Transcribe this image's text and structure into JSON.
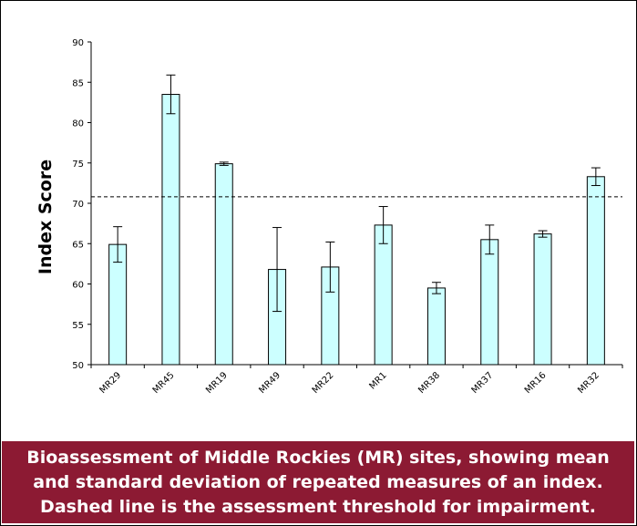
{
  "chart_data": {
    "type": "bar",
    "ylabel": "Index Score",
    "ylim": [
      50,
      90
    ],
    "yticks": [
      50,
      55,
      60,
      65,
      70,
      75,
      80,
      85,
      90
    ],
    "threshold": 70.8,
    "categories": [
      "MR29",
      "MR45",
      "MR19",
      "MR49",
      "MR22",
      "MR1",
      "MR38",
      "MR37",
      "MR16",
      "MR32"
    ],
    "values": [
      64.9,
      83.5,
      74.9,
      61.8,
      62.1,
      67.3,
      59.5,
      65.5,
      66.2,
      73.3
    ],
    "std_dev": [
      2.2,
      2.4,
      0.2,
      5.2,
      3.1,
      2.3,
      0.7,
      1.8,
      0.4,
      1.1
    ],
    "grid": false,
    "legend": "none"
  },
  "colors": {
    "bar_fill": "#ccffff",
    "bar_stroke": "#000000",
    "caption_bg": "#8c1a33",
    "caption_text": "#ffffff"
  },
  "caption": {
    "line1": "Bioassessment of Middle Rockies (MR) sites, showing mean",
    "line2": "and standard deviation of repeated measures of an index.",
    "line3": "Dashed line is the assessment threshold for impairment."
  }
}
